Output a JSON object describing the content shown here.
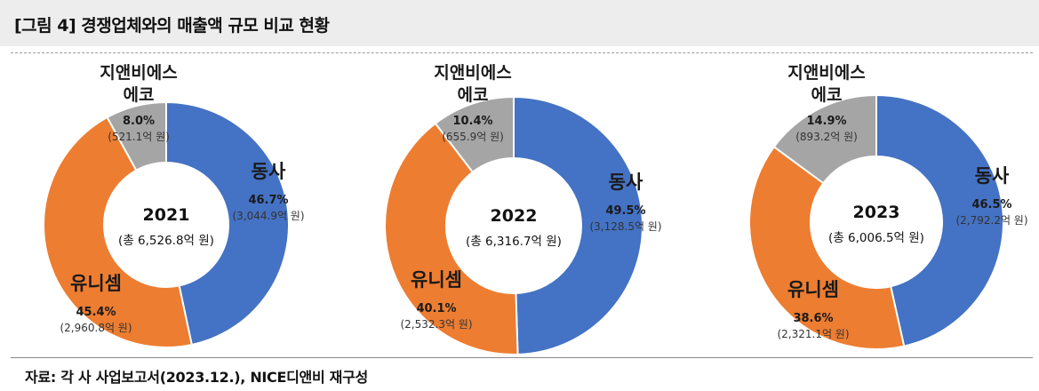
{
  "title": "[그림 4] 경쟁업체와의 매출액 규모 비교 현황",
  "source": "자료: 각 사 사업보고서(2023.12.), NICE디앤비 재구성",
  "colors": {
    "동사": "#4472c4",
    "유니셈": "#ed7d31",
    "지앤비에스 에코": "#a5a5a5"
  },
  "chart_data": [
    {
      "type": "pie",
      "center_title": "2021",
      "center_total": "(총 6,526.8억 원)",
      "slices": [
        {
          "name": "동사",
          "percent": 46.7,
          "pct_label": "46.7%",
          "value": 3044.9,
          "value_label": "(3,044.9억 원)"
        },
        {
          "name": "유니셈",
          "percent": 45.4,
          "pct_label": "45.4%",
          "value": 2960.8,
          "value_label": "(2,960.8억 원)"
        },
        {
          "name": "지앤비에스 에코",
          "name_lines": [
            "지앤비에스",
            "에코"
          ],
          "percent": 8.0,
          "pct_label": "8.0%",
          "value": 521.1,
          "value_label": "(521.1억 원)"
        }
      ]
    },
    {
      "type": "pie",
      "center_title": "2022",
      "center_total": "(총 6,316.7억 원)",
      "slices": [
        {
          "name": "동사",
          "percent": 49.5,
          "pct_label": "49.5%",
          "value": 3128.5,
          "value_label": "(3,128.5억 원)"
        },
        {
          "name": "유니셈",
          "percent": 40.1,
          "pct_label": "40.1%",
          "value": 2532.3,
          "value_label": "(2,532.3억 원)"
        },
        {
          "name": "지앤비에스 에코",
          "name_lines": [
            "지앤비에스",
            "에코"
          ],
          "percent": 10.4,
          "pct_label": "10.4%",
          "value": 655.9,
          "value_label": "(655.9억 원)"
        }
      ]
    },
    {
      "type": "pie",
      "center_title": "2023",
      "center_total": "(총 6,006.5억 원)",
      "slices": [
        {
          "name": "동사",
          "percent": 46.5,
          "pct_label": "46.5%",
          "value": 2792.2,
          "value_label": "(2,792.2억 원)"
        },
        {
          "name": "유니셈",
          "percent": 38.6,
          "pct_label": "38.6%",
          "value": 2321.1,
          "value_label": "(2,321.1억 원)"
        },
        {
          "name": "지앤비에스 에코",
          "name_lines": [
            "지앤비에스",
            "에코"
          ],
          "percent": 14.9,
          "pct_label": "14.9%",
          "value": 893.2,
          "value_label": "(893.2억 원)"
        }
      ]
    }
  ]
}
